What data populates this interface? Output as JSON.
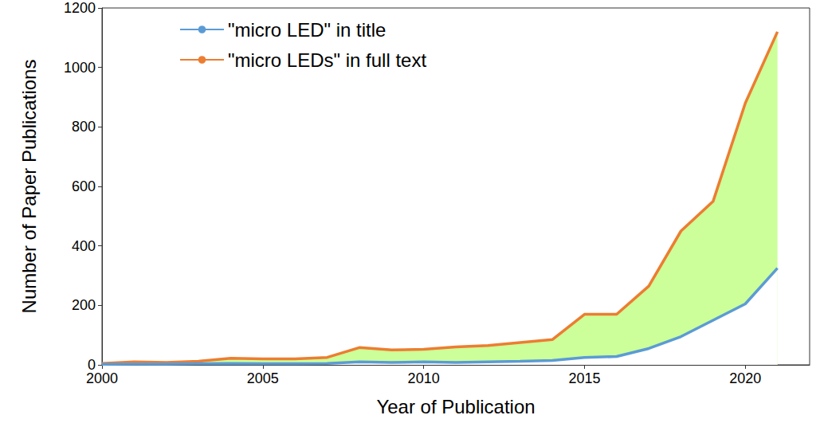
{
  "chart_data": {
    "type": "line",
    "x_label": "Year of Publication",
    "y_label": "Number of Paper Publications",
    "x": [
      2000,
      2001,
      2002,
      2003,
      2004,
      2005,
      2006,
      2007,
      2008,
      2009,
      2010,
      2011,
      2012,
      2013,
      2014,
      2015,
      2016,
      2017,
      2018,
      2019,
      2020,
      2021
    ],
    "series": [
      {
        "name": "\"micro LED\" in title",
        "color": "#5b9bd5",
        "values": [
          2,
          3,
          3,
          4,
          5,
          4,
          4,
          5,
          10,
          8,
          10,
          8,
          10,
          12,
          15,
          25,
          28,
          55,
          95,
          150,
          205,
          325
        ]
      },
      {
        "name": "\"micro LEDs\" in full text",
        "color": "#ed7d31",
        "values": [
          5,
          10,
          8,
          12,
          22,
          20,
          20,
          25,
          58,
          50,
          52,
          60,
          65,
          75,
          85,
          170,
          170,
          265,
          450,
          550,
          880,
          1120
        ]
      }
    ],
    "xlim": [
      2000,
      2022
    ],
    "xticks": [
      2000,
      2005,
      2010,
      2015,
      2020
    ],
    "ylim": [
      0,
      1200
    ],
    "yticks": [
      0,
      200,
      400,
      600,
      800,
      1000,
      1200
    ],
    "grid": false,
    "legend": "upper left"
  }
}
